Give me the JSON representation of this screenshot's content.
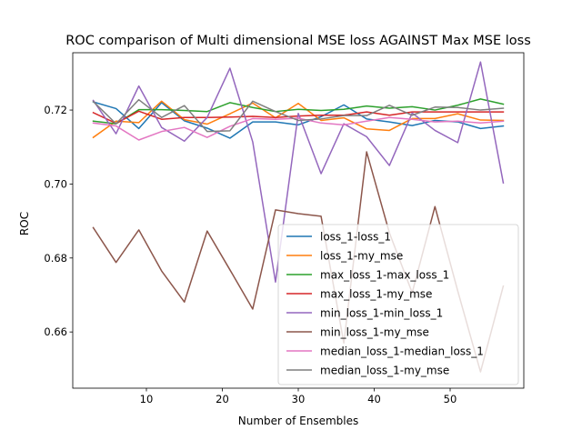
{
  "chart_data": {
    "type": "line",
    "title": "ROC comparison of Multi dimensional MSE loss AGAINST Max MSE loss",
    "xlabel": "Number of Ensembles",
    "ylabel": "ROC",
    "xlim": [
      0.3,
      59.7
    ],
    "ylim": [
      0.6448,
      0.7355
    ],
    "x_ticks": [
      10,
      20,
      30,
      40,
      50
    ],
    "y_ticks": [
      0.66,
      0.68,
      0.7,
      0.72
    ],
    "y_tick_labels": [
      "0.66",
      "0.68",
      "0.70",
      "0.72"
    ],
    "grid": false,
    "legend_position": "lower-right",
    "x": [
      3,
      6,
      9,
      12,
      15,
      18,
      21,
      24,
      27,
      30,
      33,
      36,
      39,
      42,
      45,
      48,
      51,
      54,
      57
    ],
    "series": [
      {
        "name": "loss_1-loss_1",
        "color": "#1f77b4",
        "values": [
          0.7222,
          0.7204,
          0.715,
          0.722,
          0.7171,
          0.7151,
          0.7124,
          0.7168,
          0.7168,
          0.716,
          0.7182,
          0.7214,
          0.7176,
          0.7168,
          0.7158,
          0.7172,
          0.7168,
          0.715,
          0.7157
        ]
      },
      {
        "name": "loss_1-my_mse",
        "color": "#ff7f0e",
        "values": [
          0.7126,
          0.717,
          0.7166,
          0.7224,
          0.7174,
          0.7162,
          0.719,
          0.7219,
          0.7179,
          0.7218,
          0.7172,
          0.7179,
          0.7149,
          0.7145,
          0.7177,
          0.7177,
          0.719,
          0.7173,
          0.7172
        ]
      },
      {
        "name": "max_loss_1-max_loss_1",
        "color": "#2ca02c",
        "values": [
          0.717,
          0.7163,
          0.7201,
          0.7201,
          0.7199,
          0.7196,
          0.722,
          0.7207,
          0.7196,
          0.7202,
          0.7199,
          0.7202,
          0.7211,
          0.7205,
          0.7209,
          0.72,
          0.7213,
          0.723,
          0.7216
        ]
      },
      {
        "name": "max_loss_1-my_mse",
        "color": "#d62728",
        "values": [
          0.7193,
          0.7164,
          0.7197,
          0.7175,
          0.718,
          0.718,
          0.7181,
          0.7183,
          0.718,
          0.7184,
          0.7186,
          0.7186,
          0.7195,
          0.7186,
          0.7195,
          0.7195,
          0.7195,
          0.7195,
          0.7195
        ]
      },
      {
        "name": "min_loss_1-min_loss_1",
        "color": "#9467bd",
        "values": [
          0.7226,
          0.7136,
          0.7265,
          0.7153,
          0.7116,
          0.718,
          0.7313,
          0.7114,
          0.6735,
          0.7191,
          0.7028,
          0.7163,
          0.7128,
          0.705,
          0.7192,
          0.7145,
          0.7112,
          0.733,
          0.7003
        ]
      },
      {
        "name": "min_loss_1-my_mse",
        "color": "#8c564b",
        "values": [
          0.6882,
          0.6788,
          0.6876,
          0.6765,
          0.6681,
          0.6873,
          0.6768,
          0.6662,
          0.693,
          0.692,
          0.6913,
          0.657,
          0.7087,
          0.6868,
          0.6706,
          0.6939,
          0.6711,
          0.6492,
          0.6724
        ]
      },
      {
        "name": "median_loss_1-median_loss_1",
        "color": "#e377c2",
        "values": [
          0.7165,
          0.7157,
          0.7119,
          0.7142,
          0.7153,
          0.7126,
          0.7156,
          0.7177,
          0.7175,
          0.7178,
          0.7165,
          0.716,
          0.717,
          0.718,
          0.7175,
          0.7168,
          0.717,
          0.7165,
          0.717
        ]
      },
      {
        "name": "median_loss_1-my_mse",
        "color": "#7f7f7f",
        "values": [
          0.7223,
          0.7163,
          0.7228,
          0.718,
          0.7212,
          0.7142,
          0.7144,
          0.7224,
          0.7196,
          0.7172,
          0.7176,
          0.7185,
          0.7185,
          0.7213,
          0.7186,
          0.7208,
          0.7207,
          0.72,
          0.7205
        ]
      }
    ]
  }
}
